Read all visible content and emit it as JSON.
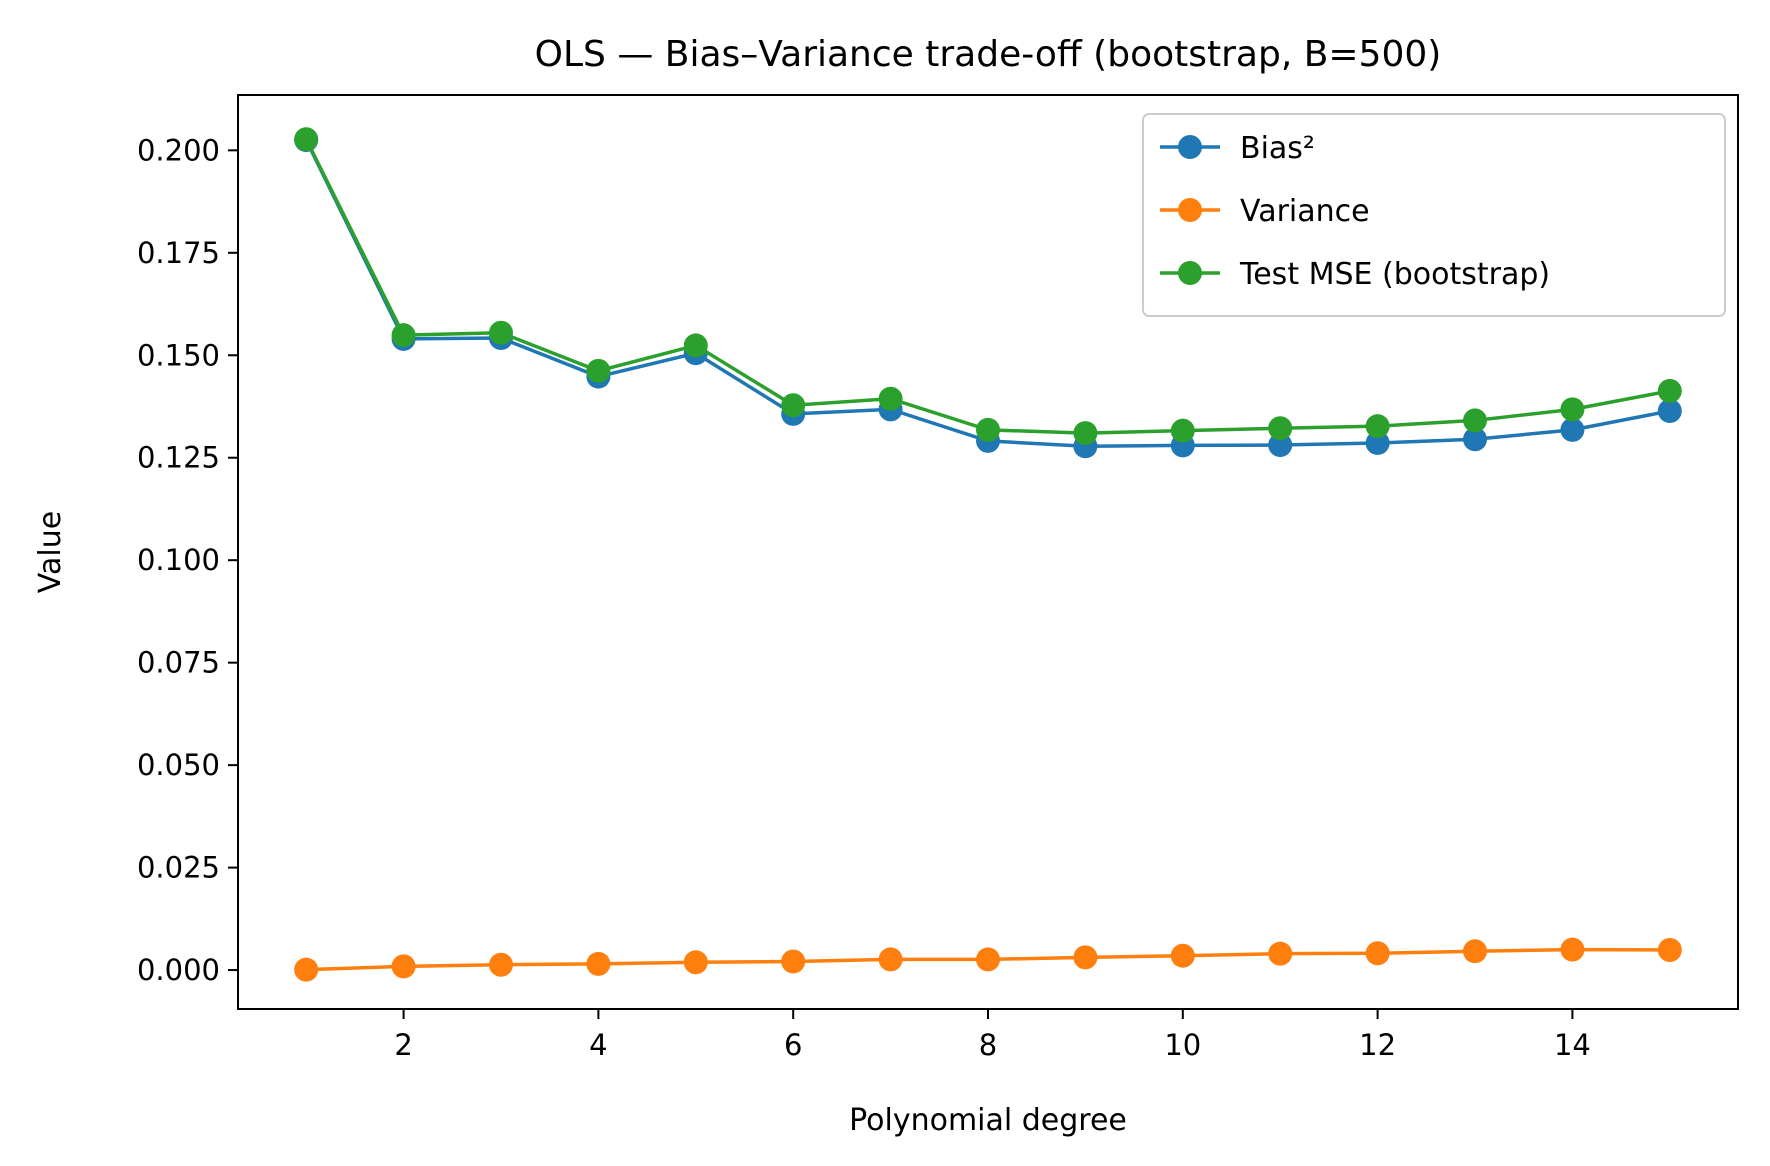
{
  "chart_data": {
    "type": "line",
    "title": "OLS — Bias–Variance trade-off (bootstrap, B=500)",
    "xlabel": "Polynomial degree",
    "ylabel": "Value",
    "x": [
      1,
      2,
      3,
      4,
      5,
      6,
      7,
      8,
      9,
      10,
      11,
      12,
      13,
      14,
      15
    ],
    "xlim": [
      0.3,
      15.7
    ],
    "ylim": [
      -0.0095,
      0.2135
    ],
    "xticks": [
      2,
      4,
      6,
      8,
      10,
      12,
      14
    ],
    "xtick_labels": [
      "2",
      "4",
      "6",
      "8",
      "10",
      "12",
      "14"
    ],
    "yticks": [
      0.0,
      0.025,
      0.05,
      0.075,
      0.1,
      0.125,
      0.15,
      0.175,
      0.2
    ],
    "ytick_labels": [
      "0.000",
      "0.025",
      "0.050",
      "0.075",
      "0.100",
      "0.125",
      "0.150",
      "0.175",
      "0.200"
    ],
    "grid": false,
    "legend_position": "top-right",
    "series": [
      {
        "name": "Bias²",
        "color": "#1f77b4",
        "values": [
          0.2025,
          0.154,
          0.1542,
          0.1448,
          0.1505,
          0.1357,
          0.1368,
          0.1291,
          0.1278,
          0.128,
          0.1281,
          0.1286,
          0.1295,
          0.1318,
          0.1364
        ]
      },
      {
        "name": "Variance",
        "color": "#ff7f0e",
        "values": [
          0.0001,
          0.0009,
          0.0013,
          0.0015,
          0.0019,
          0.0021,
          0.0026,
          0.0026,
          0.0031,
          0.0035,
          0.004,
          0.0041,
          0.0046,
          0.005,
          0.0049
        ]
      },
      {
        "name": "Test MSE (bootstrap)",
        "color": "#2ca02c",
        "values": [
          0.2027,
          0.1549,
          0.1555,
          0.1462,
          0.1524,
          0.1378,
          0.1394,
          0.1318,
          0.131,
          0.1316,
          0.1322,
          0.1327,
          0.1341,
          0.1368,
          0.1413
        ]
      }
    ]
  }
}
